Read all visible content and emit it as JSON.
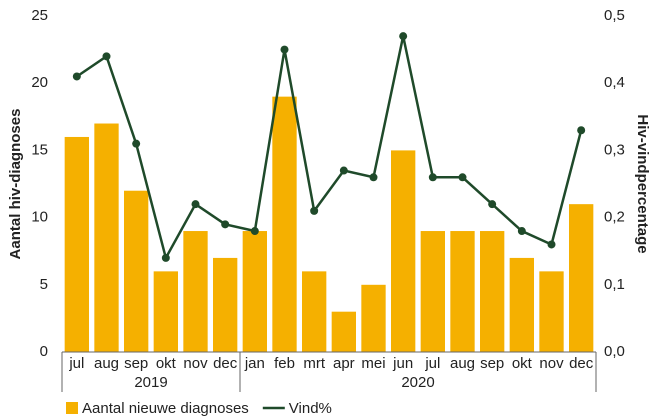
{
  "chart_data": {
    "type": "bar",
    "categories": [
      "jul",
      "aug",
      "sep",
      "okt",
      "nov",
      "dec",
      "jan",
      "feb",
      "mrt",
      "apr",
      "mei",
      "jun",
      "jul",
      "aug",
      "sep",
      "okt",
      "nov",
      "dec"
    ],
    "category_groups": [
      {
        "label": "2019",
        "size": 6
      },
      {
        "label": "2020",
        "size": 12
      }
    ],
    "series": [
      {
        "name": "Aantal nieuwe diagnoses",
        "type": "bar",
        "color": "#f5b000",
        "values": [
          16,
          17,
          12,
          6,
          9,
          7,
          9,
          19,
          6,
          3,
          5,
          15,
          9,
          9,
          9,
          7,
          6,
          11
        ]
      },
      {
        "name": "Vind%",
        "type": "line",
        "axis": "y2",
        "color": "#1f4a2a",
        "values": [
          0.41,
          0.44,
          0.31,
          0.14,
          0.22,
          0.19,
          0.18,
          0.45,
          0.21,
          0.27,
          0.26,
          0.47,
          0.26,
          0.26,
          0.22,
          0.18,
          0.16,
          0.33
        ]
      }
    ],
    "ylabel": "Aantal hiv-diagnoses",
    "y2label": "Hiv-vindpercentage",
    "ylim": [
      0,
      25
    ],
    "yticks": [
      0,
      5,
      10,
      15,
      20,
      25
    ],
    "y2lim": [
      0,
      0.5
    ],
    "y2ticks": [
      {
        "value": 0,
        "label": "0,0"
      },
      {
        "value": 0.1,
        "label": "0,1"
      },
      {
        "value": 0.2,
        "label": "0,2"
      },
      {
        "value": 0.3,
        "label": "0,3"
      },
      {
        "value": 0.4,
        "label": "0,4"
      },
      {
        "value": 0.5,
        "label": "0,5"
      }
    ],
    "grid": false,
    "legend": "bottom"
  }
}
